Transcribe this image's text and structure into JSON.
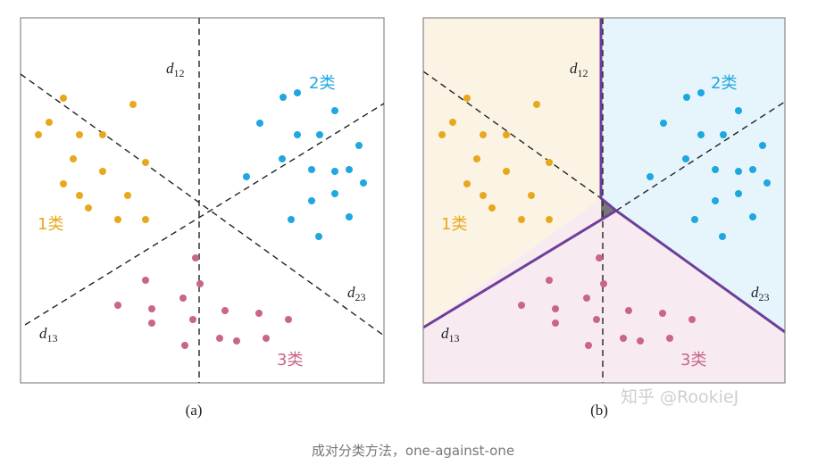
{
  "panel_a": {
    "label": "(a)",
    "lines": {
      "d12": "d",
      "d12_sub": "12",
      "d13": "d",
      "d13_sub": "13",
      "d23": "d",
      "d23_sub": "23"
    },
    "classes": {
      "c1": {
        "label": "1类",
        "color": "#e8a81c"
      },
      "c2": {
        "label": "2类",
        "color": "#1ea7e0"
      },
      "c3": {
        "label": "3类",
        "color": "#c9658b"
      }
    }
  },
  "panel_b": {
    "label": "(b)",
    "lines": {
      "d12": "d",
      "d12_sub": "12",
      "d13": "d",
      "d13_sub": "13",
      "d23": "d",
      "d23_sub": "23"
    },
    "classes": {
      "c1": {
        "label": "1类",
        "color": "#e8a81c",
        "region": "#fbf3e4"
      },
      "c2": {
        "label": "2类",
        "color": "#1ea7e0",
        "region": "#e6f5fb"
      },
      "c3": {
        "label": "3类",
        "color": "#c9658b",
        "region": "#f7ebf1"
      }
    },
    "boundary_color": "#6e3f9a",
    "ambiguous_color": "#777777"
  },
  "watermark": "知乎 @RookieJ",
  "caption": "成对分类方法，one-against-one"
}
